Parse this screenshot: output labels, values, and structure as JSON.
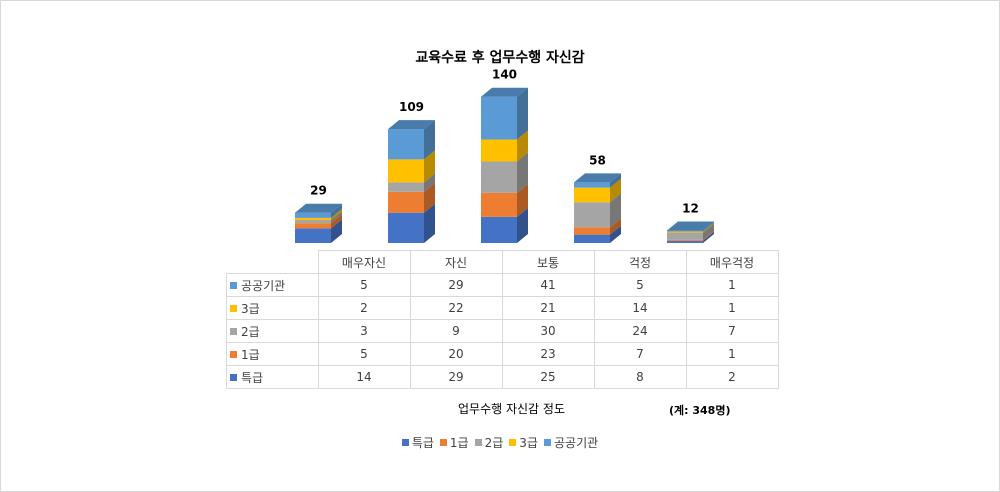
{
  "chart_data": {
    "type": "bar",
    "stacked": true,
    "title": "교육수료 후 업무수행 자신감",
    "xlabel": "업무수행 자신감 정도",
    "note": "(계: 348명)",
    "categories": [
      "매우자신",
      "자신",
      "보통",
      "걱정",
      "매우걱정"
    ],
    "totals": [
      29,
      109,
      140,
      58,
      12
    ],
    "series": [
      {
        "name": "특급",
        "color": "#4472c4",
        "values": [
          14,
          29,
          25,
          8,
          2
        ]
      },
      {
        "name": "1급",
        "color": "#ed7d31",
        "values": [
          5,
          20,
          23,
          7,
          1
        ]
      },
      {
        "name": "2급",
        "color": "#a5a5a5",
        "values": [
          3,
          9,
          30,
          24,
          7
        ]
      },
      {
        "name": "3급",
        "color": "#ffc000",
        "values": [
          2,
          22,
          21,
          14,
          1
        ]
      },
      {
        "name": "공공기관",
        "color": "#5b9bd5",
        "values": [
          5,
          29,
          41,
          5,
          1
        ]
      }
    ],
    "legend_position": "bottom",
    "data_table": true,
    "style": "3d-column"
  }
}
